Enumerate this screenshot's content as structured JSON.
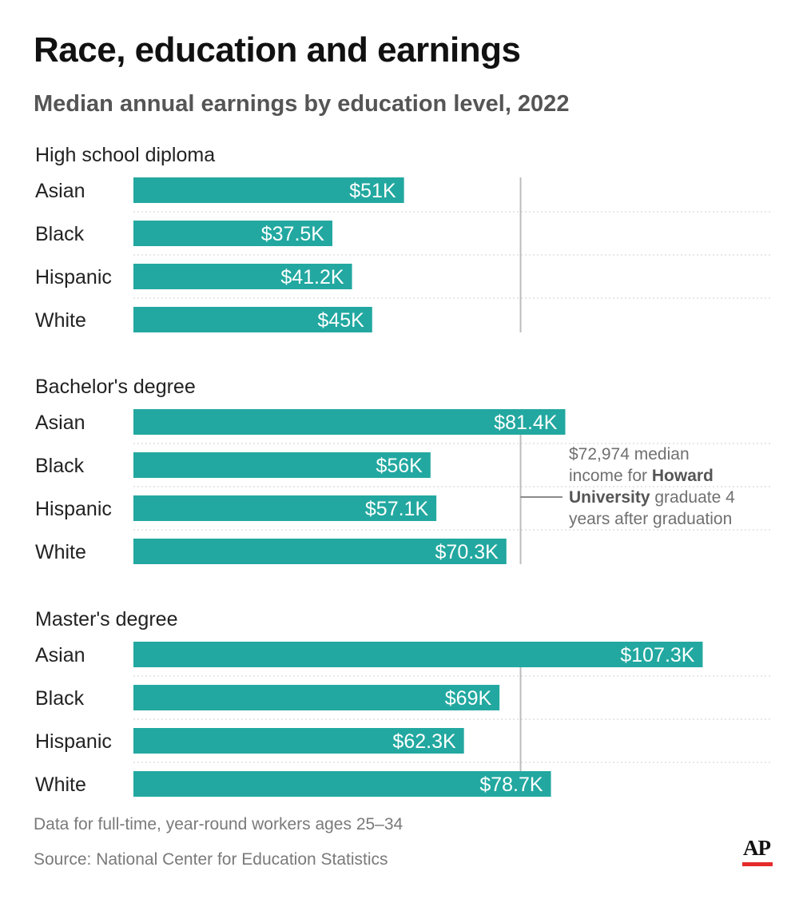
{
  "title": "Race, education and earnings",
  "subtitle": "Median annual earnings by education level, 2022",
  "chart_data": {
    "type": "bar",
    "orientation": "horizontal",
    "unit": "USD (thousands)",
    "bar_color": "#22a8a0",
    "reference_line_color": "#bdbdbd",
    "groups": [
      {
        "name": "High school diploma",
        "categories": [
          "Asian",
          "Black",
          "Hispanic",
          "White"
        ],
        "values": [
          51,
          37.5,
          41.2,
          45
        ],
        "labels": [
          "$51K",
          "$37.5K",
          "$41.2K",
          "$45K"
        ]
      },
      {
        "name": "Bachelor's degree",
        "categories": [
          "Asian",
          "Black",
          "Hispanic",
          "White"
        ],
        "values": [
          81.4,
          56,
          57.1,
          70.3
        ],
        "labels": [
          "$81.4K",
          "$56K",
          "$57.1K",
          "$70.3K"
        ]
      },
      {
        "name": "Master's degree",
        "categories": [
          "Asian",
          "Black",
          "Hispanic",
          "White"
        ],
        "values": [
          107.3,
          69,
          62.3,
          78.7
        ],
        "labels": [
          "$107.3K",
          "$69K",
          "$62.3K",
          "$78.7K"
        ]
      }
    ],
    "reference_line": {
      "value": 72.974,
      "annotation_lines": [
        [
          {
            "text": "$72,974 median",
            "bold": false
          }
        ],
        [
          {
            "text": "income for ",
            "bold": false
          },
          {
            "text": "Howard",
            "bold": true
          }
        ],
        [
          {
            "text": "University",
            "bold": true
          },
          {
            "text": " graduate 4",
            "bold": false
          }
        ],
        [
          {
            "text": "years after graduation",
            "bold": false
          }
        ]
      ]
    }
  },
  "notes": {
    "data_note": "Data for full-time, year-round workers ages 25–34",
    "source": "Source: National Center for Education Statistics"
  },
  "logo": {
    "text": "AP",
    "bar_color": "#e62b2b"
  }
}
